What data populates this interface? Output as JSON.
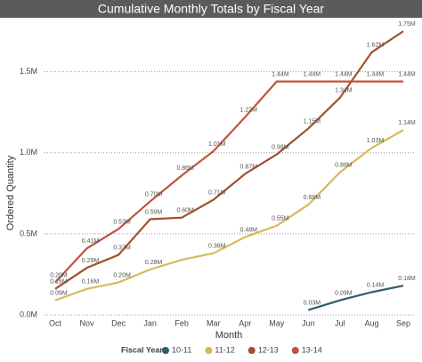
{
  "chart_data": {
    "type": "line",
    "title": "Cumulative Monthly Totals by Fiscal Year",
    "x_label": "Month",
    "y_label": "Ordered Quantity",
    "legend_title": "Fiscal Year",
    "categories": [
      "Oct",
      "Nov",
      "Dec",
      "Jan",
      "Feb",
      "Mar",
      "Apr",
      "May",
      "Jun",
      "Jul",
      "Aug",
      "Sep"
    ],
    "ylim": [
      0,
      1800000
    ],
    "yticks": [
      {
        "value": 0,
        "label": "0.0M"
      },
      {
        "value": 500000,
        "label": "0.5M"
      },
      {
        "value": 1000000,
        "label": "1.0M"
      },
      {
        "value": 1500000,
        "label": "1.5M"
      }
    ],
    "grid": true,
    "series": [
      {
        "name": "10-11",
        "color": "#2e5e6e",
        "values": [
          null,
          null,
          null,
          null,
          null,
          null,
          null,
          null,
          30000,
          90000,
          140000,
          180000
        ],
        "value_labels": [
          null,
          null,
          null,
          null,
          null,
          null,
          null,
          null,
          "0.03M",
          "0.09M",
          "0.14M",
          "0.18M"
        ]
      },
      {
        "name": "11-12",
        "color": "#d8b85c",
        "values": [
          90000,
          160000,
          200000,
          280000,
          340000,
          380000,
          480000,
          550000,
          680000,
          880000,
          1030000,
          1140000
        ],
        "value_labels": [
          "0.09M",
          "0.16M",
          "0.20M",
          "0.28M",
          null,
          "0.38M",
          "0.48M",
          "0.55M",
          "0.68M",
          "0.88M",
          "1.03M",
          "1.14M"
        ]
      },
      {
        "name": "12-13",
        "color": "#a0502e",
        "values": [
          160000,
          290000,
          370000,
          590000,
          600000,
          710000,
          870000,
          990000,
          1150000,
          1340000,
          1620000,
          1750000
        ],
        "value_labels": [
          "0.16M",
          "0.29M",
          "0.37M",
          "0.59M",
          "0.60M",
          "0.71M",
          "0.87M",
          "0.99M",
          "1.15M",
          "1.34M",
          "1.62M",
          "1.75M"
        ]
      },
      {
        "name": "13-14",
        "color": "#c0533e",
        "values": [
          200000,
          410000,
          530000,
          700000,
          860000,
          1010000,
          1220000,
          1440000,
          1440000,
          1440000,
          1440000,
          1440000
        ],
        "value_labels": [
          "0.20M",
          "0.41M",
          "0.53M",
          "0.70M",
          "0.86M",
          "1.01M",
          "1.22M",
          "1.44M",
          "1.44M",
          "1.44M",
          "1.44M",
          "1.44M"
        ]
      }
    ]
  }
}
